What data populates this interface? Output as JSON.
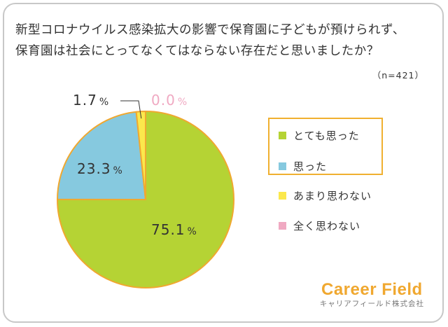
{
  "title_line1": "新型コロナウイルス感染拡大の影響で保育園に子どもが預けられず、",
  "title_line2": "保育園は社会にとってなくてはならない存在だと思いましたか？",
  "sample_size": "（n=421）",
  "chart_data": {
    "type": "pie",
    "title": "",
    "slices": [
      {
        "label": "とても思った",
        "value": 75.1,
        "value_text": "75.1",
        "color": "#b5d334"
      },
      {
        "label": "思った",
        "value": 23.3,
        "value_text": "23.3",
        "color": "#86c9df"
      },
      {
        "label": "あまり思わない",
        "value": 1.7,
        "value_text": "1.7",
        "color": "#fbe84c"
      },
      {
        "label": "全く思わない",
        "value": 0.0,
        "value_text": "0.0",
        "color": "#f0a9c2"
      }
    ],
    "unit": "%",
    "legend_position": "right",
    "outline_color": "#f0a830"
  },
  "brand": {
    "name": "Career Field",
    "sub": "キャリアフィールド株式会社",
    "color": "#f0a830"
  }
}
